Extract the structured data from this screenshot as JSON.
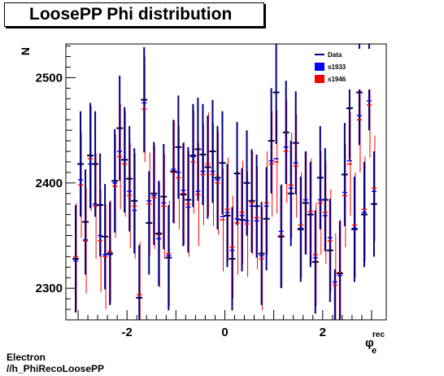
{
  "chart_data": {
    "type": "scatter",
    "title": "LoosePP Phi distribution",
    "xlabel_main": "φ",
    "xlabel_sup": "rec",
    "xlabel_sub": "e",
    "ylabel": "N",
    "xlim": [
      -3.25,
      3.3
    ],
    "ylim": [
      2270,
      2532
    ],
    "xticks": [
      -2,
      0,
      2
    ],
    "xtick_labels": [
      "-2",
      "0",
      "2"
    ],
    "yticks": [
      2300,
      2400,
      2500
    ],
    "ytick_labels": [
      "2300",
      "2400",
      "2500"
    ],
    "legend": {
      "position": "top-right"
    },
    "series": [
      {
        "name": "Data",
        "color": "#000080",
        "style": "errorbar",
        "x": [
          -3.05,
          -2.95,
          -2.85,
          -2.75,
          -2.65,
          -2.55,
          -2.45,
          -2.35,
          -2.25,
          -2.15,
          -2.05,
          -1.95,
          -1.85,
          -1.75,
          -1.65,
          -1.55,
          -1.45,
          -1.35,
          -1.25,
          -1.15,
          -1.05,
          -0.95,
          -0.85,
          -0.75,
          -0.65,
          -0.55,
          -0.45,
          -0.35,
          -0.25,
          -0.15,
          -0.05,
          0.05,
          0.15,
          0.25,
          0.35,
          0.45,
          0.55,
          0.65,
          0.75,
          0.85,
          0.95,
          1.05,
          1.15,
          1.25,
          1.35,
          1.45,
          1.55,
          1.65,
          1.75,
          1.85,
          1.95,
          2.05,
          2.15,
          2.25,
          2.35,
          2.45,
          2.55,
          2.65,
          2.75,
          2.85,
          2.95,
          3.05
        ],
        "y": [
          2328,
          2418,
          2363,
          2426,
          2418,
          2379,
          2349,
          2333,
          2402,
          2452,
          2422,
          2404,
          2383,
          2291,
          2479,
          2362,
          2390,
          2352,
          2387,
          2329,
          2411,
          2434,
          2389,
          2384,
          2426,
          2432,
          2427,
          2415,
          2430,
          2405,
          2419,
          2369,
          2328,
          2409,
          2365,
          2400,
          2383,
          2378,
          2333,
          2366,
          2440,
          2486,
          2349,
          2448,
          2390,
          2438,
          2356,
          2381,
          2370,
          2325,
          2405,
          2384,
          2336,
          2269,
          2314,
          2408,
          2471,
          2356,
          2486,
          2370,
          2500,
          2380
        ],
        "err": [
          51,
          50,
          50,
          50,
          50,
          49,
          50,
          49,
          49,
          50,
          50,
          50,
          50,
          50,
          50,
          49,
          49,
          50,
          50,
          50,
          49,
          49,
          49,
          50,
          49,
          49,
          48,
          49,
          49,
          49,
          49,
          49,
          49,
          49,
          49,
          50,
          49,
          49,
          49,
          49,
          50,
          49,
          49,
          49,
          50,
          49,
          50,
          49,
          50,
          49,
          49,
          49,
          49,
          49,
          50,
          49,
          49,
          50,
          50,
          50,
          50,
          50
        ]
      },
      {
        "name": "s1933",
        "color": "#0000ff",
        "style": "marker",
        "x": [
          -3.05,
          -2.95,
          -2.85,
          -2.75,
          -2.65,
          -2.55,
          -2.45,
          -2.35,
          -2.25,
          -2.15,
          -2.05,
          -1.95,
          -1.85,
          -1.75,
          -1.65,
          -1.55,
          -1.45,
          -1.35,
          -1.25,
          -1.15,
          -1.05,
          -0.95,
          -0.85,
          -0.75,
          -0.65,
          -0.55,
          -0.45,
          -0.35,
          -0.25,
          -0.15,
          -0.05,
          0.05,
          0.15,
          0.25,
          0.35,
          0.45,
          0.55,
          0.65,
          0.75,
          0.85,
          0.95,
          1.05,
          1.15,
          1.25,
          1.35,
          1.45,
          1.55,
          1.65,
          1.75,
          1.85,
          1.95,
          2.05,
          2.15,
          2.25,
          2.35,
          2.45,
          2.55,
          2.65,
          2.75,
          2.85,
          2.95,
          3.05
        ],
        "y": [
          2326,
          2403,
          2346,
          2418,
          2380,
          2350,
          2332,
          2332,
          2400,
          2430,
          2422,
          2392,
          2374,
          2291,
          2476,
          2383,
          2388,
          2347,
          2381,
          2331,
          2413,
          2410,
          2393,
          2377,
          2425,
          2392,
          2411,
          2415,
          2411,
          2403,
          2368,
          2372,
          2336,
          2366,
          2369,
          2364,
          2378,
          2364,
          2331,
          2378,
          2421,
          2423,
          2354,
          2434,
          2395,
          2419,
          2357,
          2384,
          2370,
          2329,
          2384,
          2369,
          2348,
          2306,
          2312,
          2391,
          2421,
          2357,
          2464,
          2372,
          2478,
          2392
        ]
      },
      {
        "name": "s1946",
        "color": "#ff0000",
        "style": "marker",
        "x": [
          -3.05,
          -2.95,
          -2.85,
          -2.75,
          -2.65,
          -2.55,
          -2.45,
          -2.35,
          -2.25,
          -2.15,
          -2.05,
          -1.95,
          -1.85,
          -1.75,
          -1.65,
          -1.55,
          -1.45,
          -1.35,
          -1.25,
          -1.15,
          -1.05,
          -0.95,
          -0.85,
          -0.75,
          -0.65,
          -0.55,
          -0.45,
          -0.35,
          -0.25,
          -0.15,
          -0.05,
          0.05,
          0.15,
          0.25,
          0.35,
          0.45,
          0.55,
          0.65,
          0.75,
          0.85,
          0.95,
          1.05,
          1.15,
          1.25,
          1.35,
          1.45,
          1.55,
          1.65,
          1.75,
          1.85,
          1.95,
          2.05,
          2.15,
          2.25,
          2.35,
          2.45,
          2.55,
          2.65,
          2.75,
          2.85,
          2.95,
          3.05
        ],
        "y": [
          2330,
          2398,
          2345,
          2423,
          2378,
          2345,
          2330,
          2335,
          2397,
          2425,
          2418,
          2388,
          2378,
          2294,
          2470,
          2380,
          2386,
          2351,
          2378,
          2333,
          2410,
          2405,
          2390,
          2380,
          2420,
          2389,
          2408,
          2418,
          2408,
          2400,
          2365,
          2375,
          2339,
          2362,
          2372,
          2361,
          2381,
          2367,
          2328,
          2381,
          2418,
          2420,
          2350,
          2430,
          2398,
          2416,
          2360,
          2381,
          2373,
          2332,
          2381,
          2372,
          2345,
          2303,
          2315,
          2388,
          2418,
          2360,
          2460,
          2375,
          2474,
          2395
        ]
      }
    ]
  },
  "footer": {
    "line1": "Electron",
    "line2": "//h_PhiRecoLoosePP"
  }
}
